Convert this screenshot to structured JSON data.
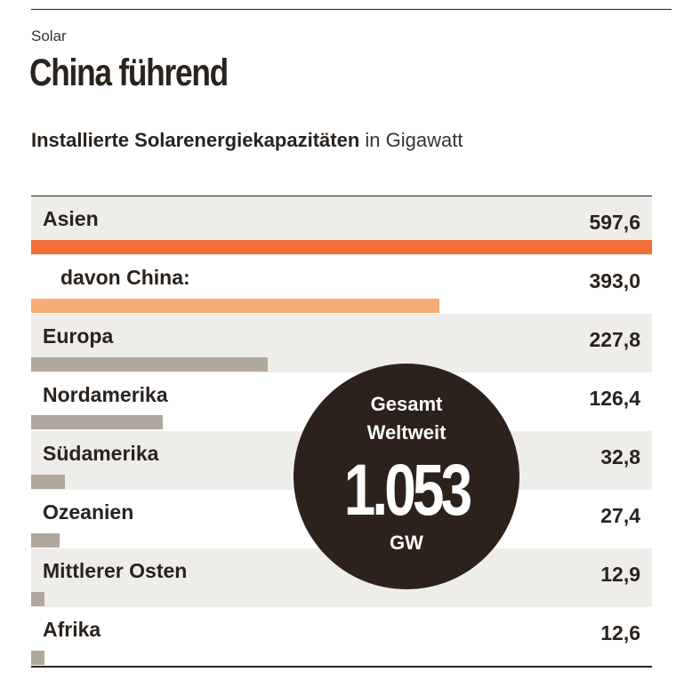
{
  "header": {
    "kicker": "Solar",
    "headline": "China führend",
    "subtitle_bold": "Installierte Solarenergiekapazitäten",
    "subtitle_unit": "in Gigawatt"
  },
  "badge": {
    "line1": "Gesamt",
    "line2": "Weltweit",
    "number": "1.053",
    "unit": "GW"
  },
  "colors": {
    "asia": "#f26f3a",
    "china": "#f9ab76",
    "other": "#b0a79d",
    "row_shade": "#efedea",
    "badge": "#2d221b"
  },
  "chart_data": {
    "type": "bar",
    "title": "Installierte Solarenergiekapazitäten",
    "unit": "in Gigawatt",
    "xlim": [
      0,
      597.6
    ],
    "categories": [
      "Asien",
      "davon China:",
      "Europa",
      "Nordamerika",
      "Südamerika",
      "Ozeanien",
      "Mittlerer Osten",
      "Afrika"
    ],
    "values": [
      597.6,
      393.0,
      227.8,
      126.4,
      32.8,
      27.4,
      12.9,
      12.6
    ],
    "value_labels": [
      "597,6",
      "393,0",
      "227,8",
      "126,4",
      "32,8",
      "27,4",
      "12,9",
      "12,6"
    ],
    "colors": [
      "#f26f3a",
      "#f9ab76",
      "#b0a79d",
      "#b0a79d",
      "#b0a79d",
      "#b0a79d",
      "#b0a79d",
      "#b0a79d"
    ],
    "total_label": "1.053"
  }
}
